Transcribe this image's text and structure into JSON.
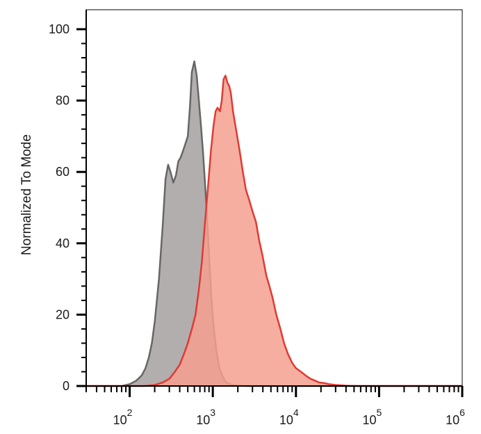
{
  "chart_data": {
    "type": "area",
    "title": "",
    "xlabel": "",
    "ylabel": "Normalized To Mode",
    "x_scale": "log",
    "xlim": [
      30,
      1000000
    ],
    "ylim": [
      0,
      100
    ],
    "y_ticks": [
      0,
      20,
      40,
      60,
      80,
      100
    ],
    "x_ticks": [
      {
        "value": 100,
        "base": "10",
        "exp": "2"
      },
      {
        "value": 1000,
        "base": "10",
        "exp": "3"
      },
      {
        "value": 10000,
        "base": "10",
        "exp": "4"
      },
      {
        "value": 100000,
        "base": "10",
        "exp": "5"
      },
      {
        "value": 1000000,
        "base": "10",
        "exp": "6"
      }
    ],
    "grid": false,
    "legend": "none",
    "series": [
      {
        "color": "#666666",
        "fill": "#b2aeae",
        "x": [
          30,
          80,
          100,
          120,
          140,
          155,
          170,
          185,
          200,
          225,
          250,
          270,
          290,
          310,
          335,
          360,
          385,
          410,
          440,
          470,
          500,
          530,
          560,
          600,
          640,
          680,
          720,
          760,
          800,
          850,
          900,
          960,
          1020,
          1100,
          1200,
          1320,
          1450,
          1650,
          1900,
          2200,
          2600,
          1000000
        ],
        "y": [
          0,
          0,
          0.5,
          1.5,
          3,
          5,
          8,
          12,
          18,
          30,
          45,
          58,
          62,
          60,
          57,
          59,
          63,
          64,
          66,
          68,
          70,
          78,
          88,
          91,
          87,
          80,
          73,
          66,
          58,
          48,
          37,
          25,
          17,
          10,
          5,
          2.5,
          1,
          0.4,
          0.2,
          0.1,
          0,
          0
        ]
      },
      {
        "color": "#e03a32",
        "fill": "#f4a08f",
        "x": [
          30,
          150,
          200,
          250,
          300,
          350,
          400,
          450,
          500,
          560,
          620,
          680,
          740,
          800,
          870,
          950,
          1020,
          1080,
          1140,
          1220,
          1280,
          1350,
          1420,
          1500,
          1580,
          1650,
          1750,
          1900,
          2100,
          2300,
          2500,
          2750,
          3000,
          3300,
          3600,
          4000,
          4400,
          4800,
          5200,
          5800,
          6500,
          7200,
          8000,
          9000,
          10000,
          11500,
          13000,
          15000,
          17000,
          19000,
          22000,
          25000,
          30000,
          35000,
          40000,
          45000,
          55000,
          1000000
        ],
        "y": [
          0,
          0,
          0.3,
          1,
          2,
          4,
          6,
          9,
          12,
          16,
          20,
          27,
          35,
          45,
          55,
          66,
          73,
          77,
          78,
          77,
          80,
          86,
          87,
          85,
          84,
          82,
          77,
          72,
          66,
          60,
          55,
          52,
          49,
          46,
          41,
          36,
          31,
          28,
          25,
          20,
          16,
          12,
          9,
          6.5,
          5,
          4,
          3,
          2,
          1.5,
          1,
          0.8,
          0.5,
          0.3,
          0.2,
          0.1,
          0.05,
          0,
          0
        ]
      }
    ]
  }
}
